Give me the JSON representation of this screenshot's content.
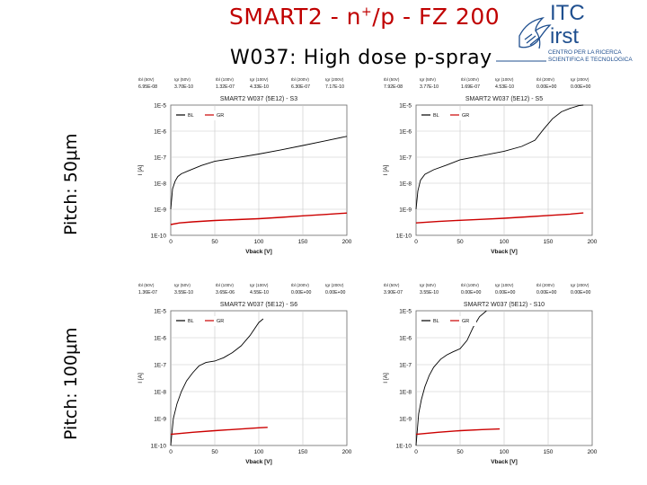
{
  "slide": {
    "title_pre": "SMART2 - n",
    "title_sup": "+",
    "title_post": "/p - FZ 200",
    "subtitle": "W037: High dose p-spray",
    "pitch_labels": [
      "Pitch: 50μm",
      "Pitch: 100μm"
    ]
  },
  "logo": {
    "line1": "ITC",
    "line2": "irst",
    "tag1": "CENTRO PER LA RICERCA",
    "tag2": "SCIENTIFICA E TECNOLOGICA",
    "icon": "eagle-crest-icon",
    "color": "#1f4f8f"
  },
  "colors": {
    "title": "#c00000",
    "BL": "#000000",
    "GR": "#cc0000",
    "grid": "#c8c8c8",
    "plot_bg": "#ffffff"
  },
  "chart_data": [
    {
      "type": "line",
      "title": "SMART2 W037 (5E12) - S3",
      "xlabel": "Vback [V]",
      "ylabel": "I [A]",
      "xlim": [
        0,
        200
      ],
      "ylim_log10": [
        -10,
        -5
      ],
      "log_y": true,
      "xticks": [
        "0",
        "50",
        "100",
        "150",
        "200"
      ],
      "yticks": [
        "1E-10",
        "1E-9",
        "1E-8",
        "1E-7",
        "1E-6",
        "1E-5"
      ],
      "legend": [
        "BL",
        "GR"
      ],
      "legend_position": "top-left",
      "summary_headers": [
        "Ibl (50V)",
        "Igr (50V)",
        "Ibl (100V)",
        "Igr (100V)",
        "Ibl (200V)",
        "Igr (200V)"
      ],
      "summary_values": [
        "6.95E-08",
        "3.70E-10",
        "1.32E-07",
        "4.33E-10",
        "6.30E-07",
        "7.17E-10"
      ],
      "series": [
        {
          "name": "BL",
          "x": [
            0,
            2,
            5,
            8,
            12,
            20,
            35,
            50,
            75,
            100,
            125,
            150,
            175,
            200
          ],
          "y": [
            1e-09,
            6e-09,
            1.2e-08,
            1.8e-08,
            2.3e-08,
            3e-08,
            4.8e-08,
            6.95e-08,
            9.5e-08,
            1.32e-07,
            1.9e-07,
            2.8e-07,
            4.2e-07,
            6.3e-07
          ]
        },
        {
          "name": "GR",
          "x": [
            0,
            10,
            25,
            50,
            75,
            100,
            125,
            150,
            175,
            200
          ],
          "y": [
            2.6e-10,
            3e-10,
            3.3e-10,
            3.7e-10,
            4e-10,
            4.33e-10,
            4.9e-10,
            5.6e-10,
            6.3e-10,
            7.17e-10
          ]
        }
      ]
    },
    {
      "type": "line",
      "title": "SMART2 W037 (5E12) - S5",
      "xlabel": "Vback [V]",
      "ylabel": "I [A]",
      "xlim": [
        0,
        200
      ],
      "ylim_log10": [
        -10,
        -5
      ],
      "log_y": true,
      "xticks": [
        "0",
        "50",
        "100",
        "150",
        "200"
      ],
      "yticks": [
        "1E-10",
        "1E-9",
        "1E-8",
        "1E-7",
        "1E-6",
        "1E-5"
      ],
      "legend": [
        "BL",
        "GR"
      ],
      "legend_position": "top-left",
      "summary_headers": [
        "Ibl (50V)",
        "Igr (50V)",
        "Ibl (100V)",
        "Igr (100V)",
        "Ibl (200V)",
        "Igr (200V)"
      ],
      "summary_values": [
        "7.92E-08",
        "3.77E-10",
        "1.69E-07",
        "4.53E-10",
        "0.00E+00",
        "0.00E+00"
      ],
      "series": [
        {
          "name": "BL",
          "x": [
            0,
            2,
            5,
            10,
            20,
            35,
            50,
            75,
            100,
            120,
            135,
            145,
            155,
            165,
            175,
            185,
            190
          ],
          "y": [
            1e-09,
            5e-09,
            1.3e-08,
            2.2e-08,
            3.3e-08,
            5e-08,
            7.92e-08,
            1.15e-07,
            1.69e-07,
            2.6e-07,
            4.5e-07,
            1.2e-06,
            3e-06,
            5.5e-06,
            7.5e-06,
            9.5e-06,
            1e-05
          ]
        },
        {
          "name": "GR",
          "x": [
            0,
            25,
            50,
            75,
            100,
            125,
            150,
            175,
            190
          ],
          "y": [
            3e-10,
            3.4e-10,
            3.77e-10,
            4.1e-10,
            4.53e-10,
            5.1e-10,
            5.8e-10,
            6.5e-10,
            7.2e-10
          ]
        }
      ]
    },
    {
      "type": "line",
      "title": "SMART2 W037 (5E12) - S6",
      "xlabel": "Vback [V]",
      "ylabel": "I [A]",
      "xlim": [
        0,
        200
      ],
      "ylim_log10": [
        -10,
        -5
      ],
      "log_y": true,
      "xticks": [
        "0",
        "50",
        "100",
        "150",
        "200"
      ],
      "yticks": [
        "1E-10",
        "1E-9",
        "1E-8",
        "1E-7",
        "1E-6",
        "1E-5"
      ],
      "legend": [
        "BL",
        "GR"
      ],
      "legend_position": "top-left",
      "summary_headers": [
        "Ibl (50V)",
        "Igr (50V)",
        "Ibl (100V)",
        "Igr (100V)",
        "Ibl (200V)",
        "Igr (200V)"
      ],
      "summary_values": [
        "1.36E-07",
        "3.55E-10",
        "3.65E-06",
        "4.55E-10",
        "0.00E+00",
        "0.00E+00"
      ],
      "series": [
        {
          "name": "BL",
          "x": [
            0,
            3,
            7,
            12,
            18,
            25,
            32,
            40,
            50,
            60,
            70,
            80,
            90,
            100,
            105
          ],
          "y": [
            1e-10,
            1e-09,
            3.5e-09,
            1e-08,
            2.5e-08,
            5e-08,
            9e-08,
            1.2e-07,
            1.36e-07,
            1.8e-07,
            2.8e-07,
            5e-07,
            1.2e-06,
            3.65e-06,
            5e-06
          ]
        },
        {
          "name": "GR",
          "x": [
            0,
            25,
            50,
            75,
            100,
            110
          ],
          "y": [
            2.6e-10,
            3.1e-10,
            3.55e-10,
            4e-10,
            4.55e-10,
            4.7e-10
          ]
        }
      ]
    },
    {
      "type": "line",
      "title": "SMART2 W037 (5E12) - S10",
      "xlabel": "Vback [V]",
      "ylabel": "I [A]",
      "xlim": [
        0,
        200
      ],
      "ylim_log10": [
        -10,
        -5
      ],
      "log_y": true,
      "xticks": [
        "0",
        "50",
        "100",
        "150",
        "200"
      ],
      "yticks": [
        "1E-10",
        "1E-9",
        "1E-8",
        "1E-7",
        "1E-6",
        "1E-5"
      ],
      "legend": [
        "BL",
        "GR"
      ],
      "legend_position": "top-left",
      "summary_headers": [
        "Ibl (50V)",
        "Igr (50V)",
        "Ibl (100V)",
        "Igr (100V)",
        "Ibl (200V)",
        "Igr (200V)"
      ],
      "summary_values": [
        "3.90E-07",
        "3.55E-10",
        "0.00E+00",
        "0.00E+00",
        "0.00E+00",
        "0.00E+00"
      ],
      "series": [
        {
          "name": "BL",
          "x": [
            0,
            3,
            6,
            10,
            15,
            20,
            28,
            35,
            42,
            50,
            58,
            65,
            72,
            80
          ],
          "y": [
            1e-10,
            1.5e-09,
            5e-09,
            1.5e-08,
            4e-08,
            8e-08,
            1.6e-07,
            2.3e-07,
            3e-07,
            3.9e-07,
            8e-07,
            2.5e-06,
            6e-06,
            1e-05
          ]
        },
        {
          "name": "GR",
          "x": [
            0,
            25,
            50,
            75,
            95
          ],
          "y": [
            2.6e-10,
            3.1e-10,
            3.55e-10,
            3.9e-10,
            4.1e-10
          ]
        }
      ]
    }
  ]
}
